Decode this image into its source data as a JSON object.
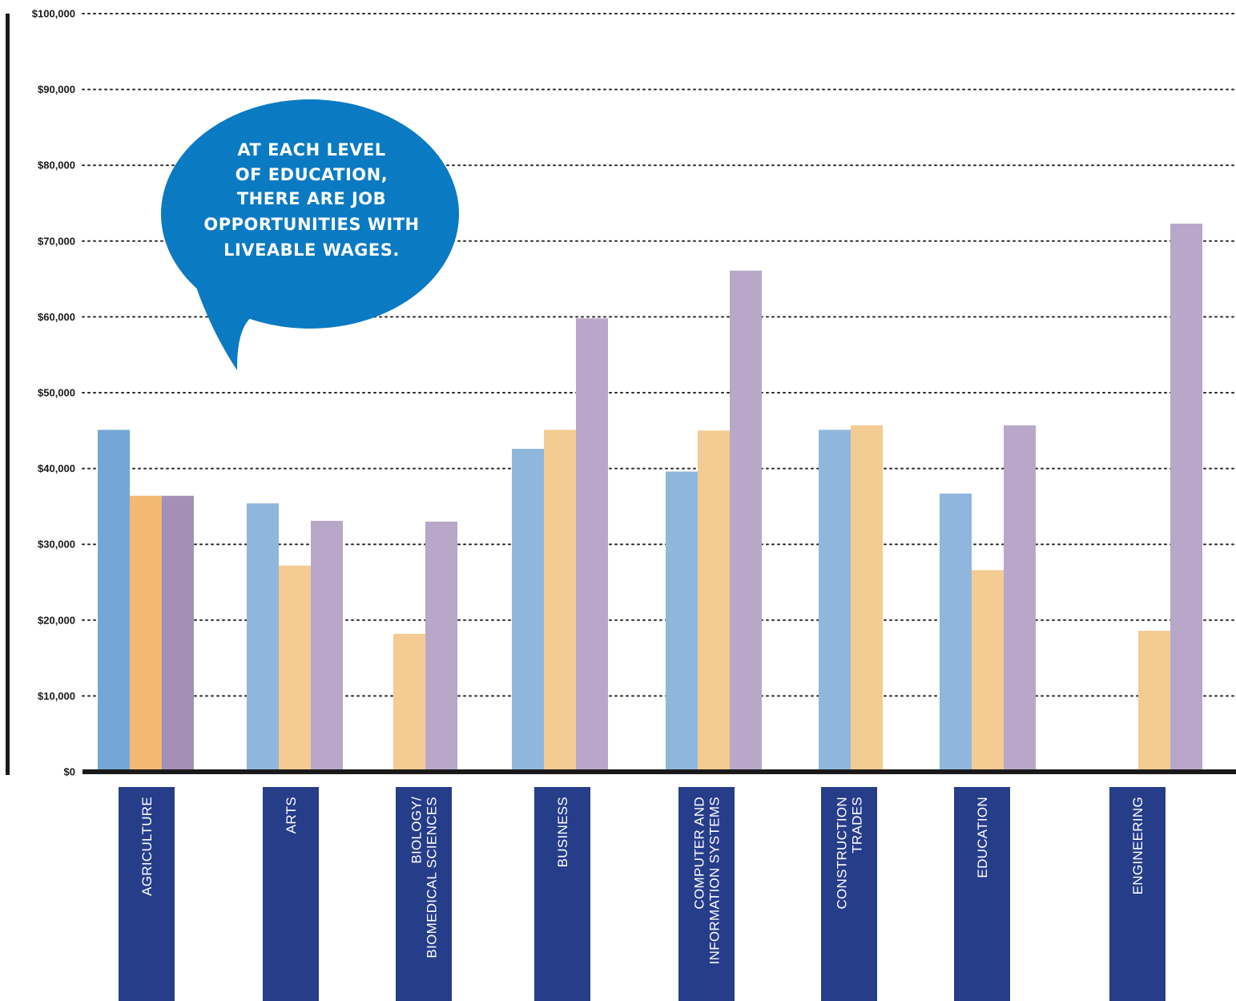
{
  "chart_data": {
    "type": "bar",
    "categories": [
      [
        "AGRICULTURE"
      ],
      [
        "ARTS"
      ],
      [
        "BIOLOGY/",
        "BIOMEDICAL SCIENCES"
      ],
      [
        "BUSINESS"
      ],
      [
        "COMPUTER AND",
        "INFORMATION SYSTEMS"
      ],
      [
        "CONSTRUCTION",
        "TRADES"
      ],
      [
        "EDUCATION"
      ],
      [
        "ENGINEERING"
      ]
    ],
    "series": [
      {
        "color": "#8fb7dd",
        "values": [
          45100,
          35400,
          null,
          42600,
          39600,
          45100,
          36700,
          null
        ]
      },
      {
        "color": "#f4cb93",
        "values": [
          36400,
          27200,
          18200,
          45100,
          45000,
          45700,
          26600,
          18600
        ]
      },
      {
        "color": "#b8a7c9",
        "values": [
          36400,
          33100,
          33000,
          59800,
          66100,
          null,
          45700,
          72300
        ]
      }
    ],
    "highlight_colors": [
      "#74a7d6",
      "#f3b973",
      "#a48fb6"
    ],
    "ylim": [
      0,
      100000
    ],
    "yticks": [
      "$0",
      "$10,000",
      "$20,000",
      "$30,000",
      "$40,000",
      "$50,000",
      "$60,000",
      "$70,000",
      "$80,000",
      "$90,000",
      "$100,000"
    ],
    "grid": true,
    "category_label_color": "#263d8a",
    "annotation": {
      "lines": [
        "AT EACH LEVEL",
        "OF EDUCATION,",
        "THERE ARE JOB",
        "OPPORTUNITIES WITH",
        "LIVEABLE WAGES."
      ],
      "color": "#0a7ac3"
    }
  }
}
